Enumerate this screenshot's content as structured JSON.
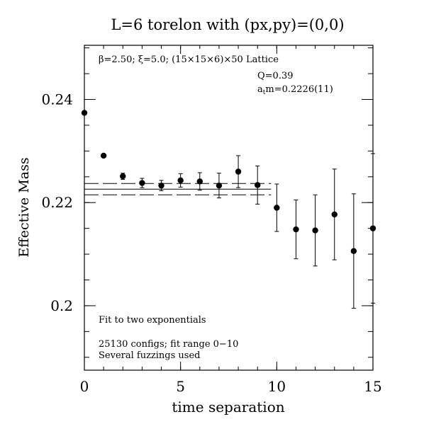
{
  "chart_data": {
    "type": "scatter",
    "title": "L=6 torelon with (px,py)=(0,0)",
    "xlabel": "time separation",
    "ylabel": "Effective Mass",
    "xlim": [
      0,
      15
    ],
    "ylim": [
      0.1875,
      0.2505
    ],
    "xticks": [
      {
        "value": 0,
        "label": "0"
      },
      {
        "value": 5,
        "label": "5"
      },
      {
        "value": 10,
        "label": "10"
      },
      {
        "value": 15,
        "label": "15"
      }
    ],
    "yticks": [
      {
        "value": 0.2,
        "label": "0.2"
      },
      {
        "value": 0.22,
        "label": "0.22"
      },
      {
        "value": 0.24,
        "label": "0.24"
      }
    ],
    "x_minor_step": 1,
    "y_minor_step": 0.005,
    "series": [
      {
        "x": [
          0,
          1,
          2,
          3,
          4,
          5,
          6,
          7,
          8,
          9,
          10,
          11,
          12,
          13,
          14,
          15
        ],
        "y": [
          0.2374,
          0.2291,
          0.2251,
          0.2238,
          0.2233,
          0.2243,
          0.2241,
          0.2233,
          0.226,
          0.2234,
          0.219,
          0.2148,
          0.2146,
          0.2177,
          0.2106,
          0.215
        ],
        "err": [
          0.0,
          0.0,
          0.0006,
          0.0009,
          0.001,
          0.0013,
          0.0017,
          0.0024,
          0.0031,
          0.0037,
          0.0046,
          0.0057,
          0.0069,
          0.0088,
          0.0111,
          0.0145
        ]
      }
    ],
    "fit": {
      "central": 0.2226,
      "error": 0.0011,
      "x_range": [
        0,
        10
      ]
    },
    "annotations": {
      "lattice": "β=2.50; ξ=5.0; (15×15×6)×50 Lattice",
      "q_value": "Q=0.39",
      "mass_prefix": "a",
      "mass_sub": "t",
      "mass_value": "m=0.2226(11)",
      "fit_note": "Fit to two exponentials",
      "configs": "25130 configs; fit range 0−10",
      "fuzzing": "Several fuzzings used"
    }
  }
}
